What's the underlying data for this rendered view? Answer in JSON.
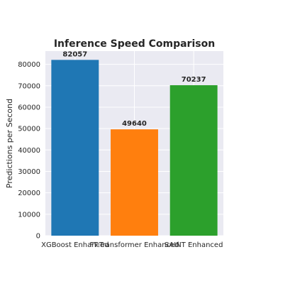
{
  "chart_data": {
    "type": "bar",
    "title": "Inference Speed Comparison",
    "xlabel": "",
    "ylabel": "Predictions per Second",
    "categories": [
      "XGBoost Enhanced",
      "FT-Transformer Enhanced",
      "SAINT Enhanced"
    ],
    "values": [
      82057,
      49640,
      70237
    ],
    "data_labels": [
      "82057",
      "49640",
      "70237"
    ],
    "colors": [
      "#1f77b4",
      "#ff7f0e",
      "#2ca02c"
    ],
    "ylim": [
      0,
      86160
    ],
    "yticks": [
      0,
      10000,
      20000,
      30000,
      40000,
      50000,
      60000,
      70000,
      80000
    ],
    "ytick_labels": [
      "0",
      "10000",
      "20000",
      "30000",
      "40000",
      "50000",
      "60000",
      "70000",
      "80000"
    ],
    "grid": true,
    "background": "#eaeaf2"
  }
}
